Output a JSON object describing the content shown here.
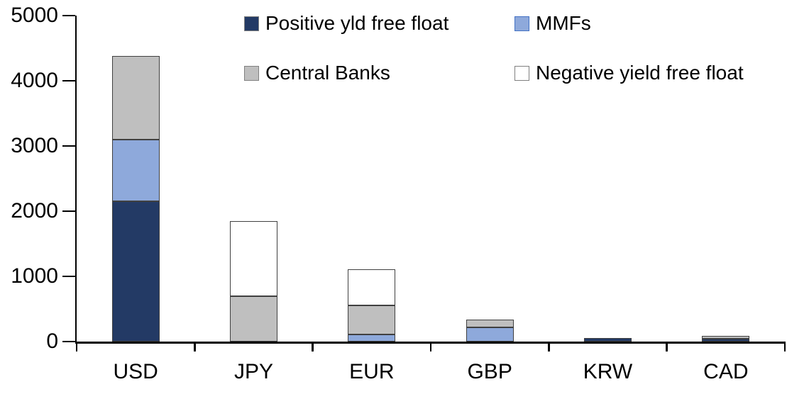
{
  "chart_data": {
    "type": "bar",
    "stacked": true,
    "categories": [
      "USD",
      "JPY",
      "EUR",
      "GBP",
      "KRW",
      "CAD"
    ],
    "series": [
      {
        "name": "Positive yld free float",
        "color": "#233A65",
        "swatch_border": "#808080",
        "values": [
          2150,
          0,
          0,
          0,
          50,
          40
        ]
      },
      {
        "name": "MMFs",
        "color": "#8EA9DB",
        "swatch_border": "#4472C4",
        "values": [
          950,
          0,
          110,
          215,
          0,
          0
        ]
      },
      {
        "name": "Central Banks",
        "color": "#BFBFBF",
        "swatch_border": "#808080",
        "values": [
          1280,
          700,
          440,
          120,
          0,
          45
        ]
      },
      {
        "name": "Negative yield free float",
        "color": "#FFFFFF",
        "swatch_border": "#808080",
        "values": [
          0,
          1150,
          560,
          0,
          0,
          0
        ]
      }
    ],
    "totals": [
      4380,
      1850,
      1110,
      335,
      50,
      85
    ],
    "ylim": [
      0,
      5000
    ],
    "ytick_interval": 1000,
    "yticks": [
      "0",
      "1000",
      "2000",
      "3000",
      "4000",
      "5000"
    ],
    "legend_position": "top",
    "legend_rows": 2,
    "grid": false,
    "axis_color": "#000000",
    "bar_border_color": "#404040"
  }
}
